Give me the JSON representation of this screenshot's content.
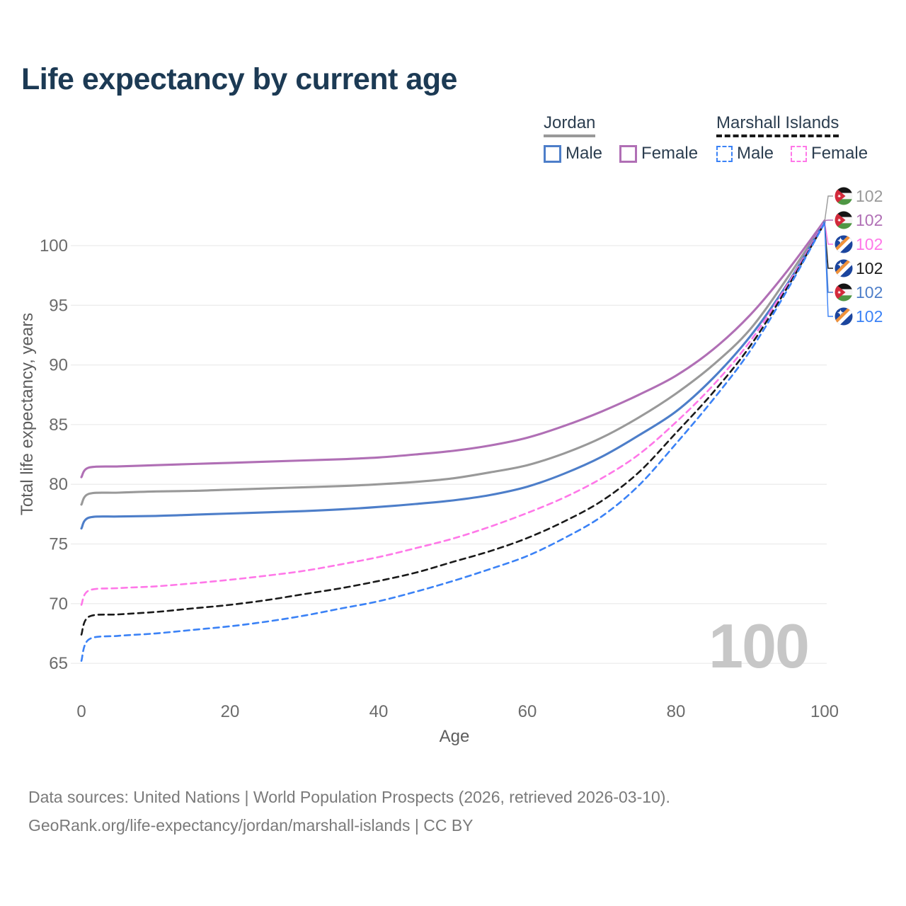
{
  "title": "Life expectancy by current age",
  "watermark": "100",
  "legend": {
    "groups": [
      {
        "country": "Jordan",
        "line_style": "solid",
        "underline_color": "#999999",
        "items": [
          {
            "label": "Male",
            "color": "#4d7ec9",
            "dashed": false
          },
          {
            "label": "Female",
            "color": "#b06fb5",
            "dashed": false
          }
        ]
      },
      {
        "country": "Marshall Islands",
        "line_style": "dashed",
        "underline_color": "#1a1a1a",
        "items": [
          {
            "label": "Male",
            "color": "#3b82f6",
            "dashed": true
          },
          {
            "label": "Female",
            "color": "#ff77e8",
            "dashed": true
          }
        ]
      }
    ]
  },
  "footer": {
    "line1": "Data sources: United Nations | World Population Prospects (2026, retrieved 2026-03-10).",
    "line2": "GeoRank.org/life-expectancy/jordan/marshall-islands | CC BY"
  },
  "chart_data": {
    "type": "line",
    "title": "Life expectancy by current age",
    "xlabel": "Age",
    "ylabel": "Total life expectancy, years",
    "xlim": [
      0,
      100
    ],
    "ylim": [
      64,
      103.5
    ],
    "xticks": [
      0,
      20,
      40,
      60,
      80,
      100
    ],
    "yticks": [
      65,
      70,
      75,
      80,
      85,
      90,
      95,
      100
    ],
    "grid": "horizontal",
    "legend_position": "top-right",
    "x": [
      0,
      1,
      5,
      10,
      15,
      20,
      25,
      30,
      35,
      40,
      45,
      50,
      55,
      60,
      65,
      70,
      75,
      80,
      85,
      90,
      95,
      100
    ],
    "series": [
      {
        "name": "Jordan — Both sexes",
        "country": "Jordan",
        "sex": "Both sexes",
        "color": "#999999",
        "dashed": false,
        "flag": "jordan",
        "end_label": "102",
        "values": [
          78.3,
          79.2,
          79.3,
          79.4,
          79.45,
          79.55,
          79.65,
          79.75,
          79.85,
          80.0,
          80.2,
          80.5,
          81.0,
          81.6,
          82.6,
          83.9,
          85.6,
          87.6,
          90.0,
          93.0,
          97.3,
          102.0
        ]
      },
      {
        "name": "Jordan — Female",
        "country": "Jordan",
        "sex": "Female",
        "color": "#b06fb5",
        "dashed": false,
        "flag": "jordan",
        "end_label": "102",
        "values": [
          80.6,
          81.4,
          81.5,
          81.6,
          81.7,
          81.8,
          81.9,
          82.0,
          82.1,
          82.25,
          82.5,
          82.8,
          83.25,
          83.9,
          84.9,
          86.1,
          87.5,
          89.1,
          91.3,
          94.2,
          97.9,
          102.1
        ]
      },
      {
        "name": "Marshall Islands — Female",
        "country": "Marshall Islands",
        "sex": "Female",
        "color": "#ff77e8",
        "dashed": true,
        "flag": "marshall-islands",
        "end_label": "102",
        "values": [
          69.9,
          71.1,
          71.3,
          71.45,
          71.7,
          72.0,
          72.35,
          72.75,
          73.3,
          73.9,
          74.65,
          75.45,
          76.45,
          77.6,
          78.9,
          80.5,
          82.5,
          85.2,
          88.3,
          92.0,
          96.7,
          102.0
        ]
      },
      {
        "name": "Marshall Islands — Both sexes",
        "country": "Marshall Islands",
        "sex": "Both sexes",
        "color": "#1a1a1a",
        "dashed": true,
        "flag": "marshall-islands",
        "end_label": "102",
        "values": [
          67.4,
          68.9,
          69.1,
          69.3,
          69.6,
          69.9,
          70.3,
          70.8,
          71.3,
          71.9,
          72.6,
          73.5,
          74.4,
          75.5,
          76.9,
          78.6,
          81.0,
          84.3,
          87.7,
          91.6,
          96.5,
          101.9
        ]
      },
      {
        "name": "Jordan — Male",
        "country": "Jordan",
        "sex": "Male",
        "color": "#4d7ec9",
        "dashed": false,
        "flag": "jordan",
        "end_label": "102",
        "values": [
          76.3,
          77.2,
          77.3,
          77.35,
          77.45,
          77.55,
          77.65,
          77.75,
          77.9,
          78.1,
          78.35,
          78.65,
          79.1,
          79.8,
          80.9,
          82.3,
          84.1,
          86.1,
          88.9,
          92.4,
          96.8,
          102.0
        ]
      },
      {
        "name": "Marshall Islands — Male",
        "country": "Marshall Islands",
        "sex": "Male",
        "color": "#3b82f6",
        "dashed": true,
        "flag": "marshall-islands",
        "end_label": "102",
        "values": [
          65.2,
          67.0,
          67.3,
          67.5,
          67.8,
          68.1,
          68.5,
          69.0,
          69.6,
          70.2,
          71.0,
          71.9,
          72.9,
          74.0,
          75.5,
          77.3,
          79.9,
          83.4,
          87.1,
          91.2,
          96.3,
          101.9
        ]
      }
    ]
  }
}
